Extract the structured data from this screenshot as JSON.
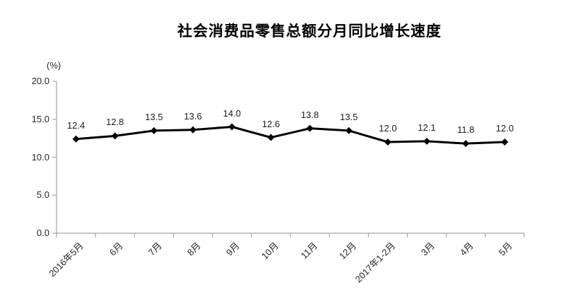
{
  "chart_data": {
    "type": "line",
    "title": "社会消费品零售总额分月同比增长速度",
    "ylabel": "(%)",
    "xlabel": "",
    "categories": [
      "2016年5月",
      "6月",
      "7月",
      "8月",
      "9月",
      "10月",
      "11月",
      "12月",
      "2017年1-2月",
      "3月",
      "4月",
      "5月"
    ],
    "values": [
      12.4,
      12.8,
      13.5,
      13.6,
      14.0,
      12.6,
      13.8,
      13.5,
      12.0,
      12.1,
      11.8,
      12.0
    ],
    "data_labels": [
      "12.4",
      "12.8",
      "13.5",
      "13.6",
      "14.0",
      "12.6",
      "13.8",
      "13.5",
      "12.0",
      "12.1",
      "11.8",
      "12.0"
    ],
    "ylim": [
      0.0,
      20.0
    ],
    "yticks": [
      "0.0",
      "5.0",
      "10.0",
      "15.0",
      "20.0"
    ],
    "grid": false,
    "legend_position": "none",
    "marker": "diamond",
    "line_color": "#000000",
    "marker_color": "#000000",
    "axis_color": "#a6a6a6",
    "tick_label_color": "#262626",
    "data_label_color": "#1a1a1a"
  }
}
